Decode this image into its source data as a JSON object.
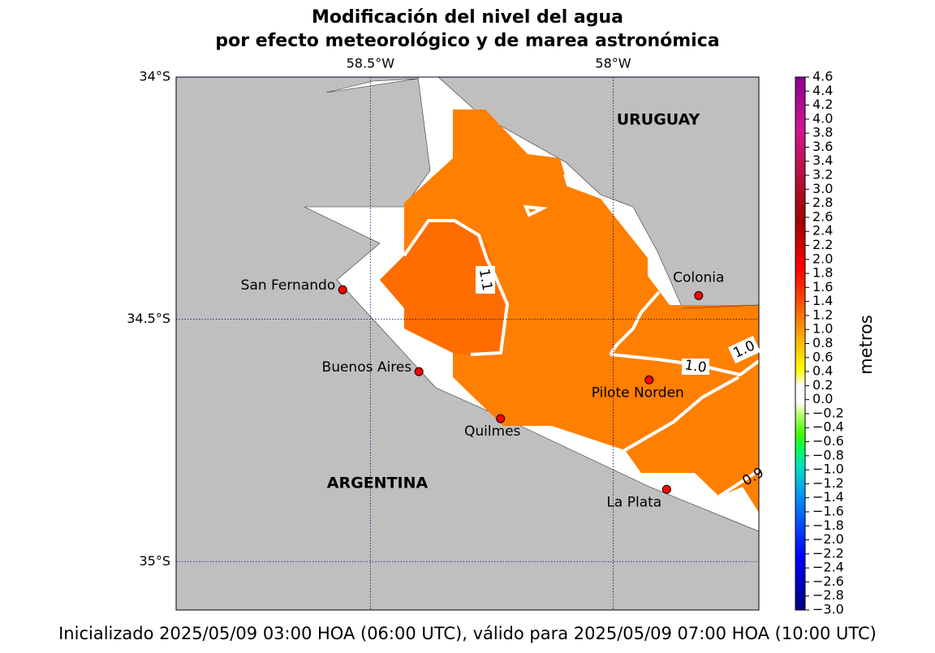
{
  "title": [
    "Modificación del nivel del agua",
    "por efecto meteorológico y de marea astronómica"
  ],
  "map": {
    "xlim": [
      -58.9,
      -57.7
    ],
    "ylim": [
      -35.1,
      -34
    ],
    "xticks": [
      {
        "value": -58.5,
        "label": "58.5°W"
      },
      {
        "value": -58,
        "label": "58°W"
      }
    ],
    "yticks": [
      {
        "value": -34,
        "label": "34°S"
      },
      {
        "value": -34.5,
        "label": "34.5°S"
      },
      {
        "value": -35,
        "label": "35°S"
      }
    ],
    "places": [
      {
        "name": "San Fernando",
        "lon": -58.557,
        "lat": -34.439
      },
      {
        "name": "Buenos Aires",
        "lon": -58.4,
        "lat": -34.608
      },
      {
        "name": "Quilmes",
        "lon": -58.232,
        "lat": -34.705
      },
      {
        "name": "Pilote Norden",
        "lon": -57.926,
        "lat": -34.625
      },
      {
        "name": "Colonia",
        "lon": -57.824,
        "lat": -34.451
      },
      {
        "name": "La Plata",
        "lon": -57.89,
        "lat": -34.851
      }
    ],
    "regions": [
      "URUGUAY",
      "ARGENTINA"
    ],
    "contour_labels": [
      "1.1",
      "1.0",
      "1.0",
      "0.9"
    ]
  },
  "colorbar": {
    "label": "metros",
    "lim": [
      -3,
      4.6
    ],
    "ticks": [
      4.6,
      4.4,
      4.2,
      {
        "value": 4,
        "label": "4.0"
      },
      3.8,
      3.6,
      3.4,
      3.2,
      {
        "value": 3,
        "label": "3.0"
      },
      2.8,
      2.6,
      2.4,
      2.2,
      {
        "value": 2,
        "label": "2.0"
      },
      1.8,
      1.6,
      1.4,
      1.2,
      {
        "value": 1,
        "label": "1.0"
      },
      0.8,
      0.6,
      0.4,
      0.2,
      {
        "value": 0,
        "label": "0.0"
      },
      {
        "value": -0.2,
        "label": "−0.2"
      },
      {
        "value": -0.4,
        "label": "−0.4"
      },
      {
        "value": -0.6,
        "label": "−0.6"
      },
      {
        "value": -0.8,
        "label": "−0.8"
      },
      {
        "value": -1,
        "label": "−1.0"
      },
      {
        "value": -1.2,
        "label": "−1.2"
      },
      {
        "value": -1.4,
        "label": "−1.4"
      },
      {
        "value": -1.6,
        "label": "−1.6"
      },
      {
        "value": -1.8,
        "label": "−1.8"
      },
      {
        "value": -2,
        "label": "−2.0"
      },
      {
        "value": -2.2,
        "label": "−2.2"
      },
      {
        "value": -2.4,
        "label": "−2.4"
      },
      {
        "value": -2.6,
        "label": "−2.6"
      },
      {
        "value": -2.8,
        "label": "−2.8"
      },
      {
        "value": -3,
        "label": "−3.0"
      }
    ]
  },
  "footer": "Inicializado 2025/05/09 03:00 HOA (06:00 UTC), válido para 2025/05/09 07:00 HOA (10:00 UTC)"
}
